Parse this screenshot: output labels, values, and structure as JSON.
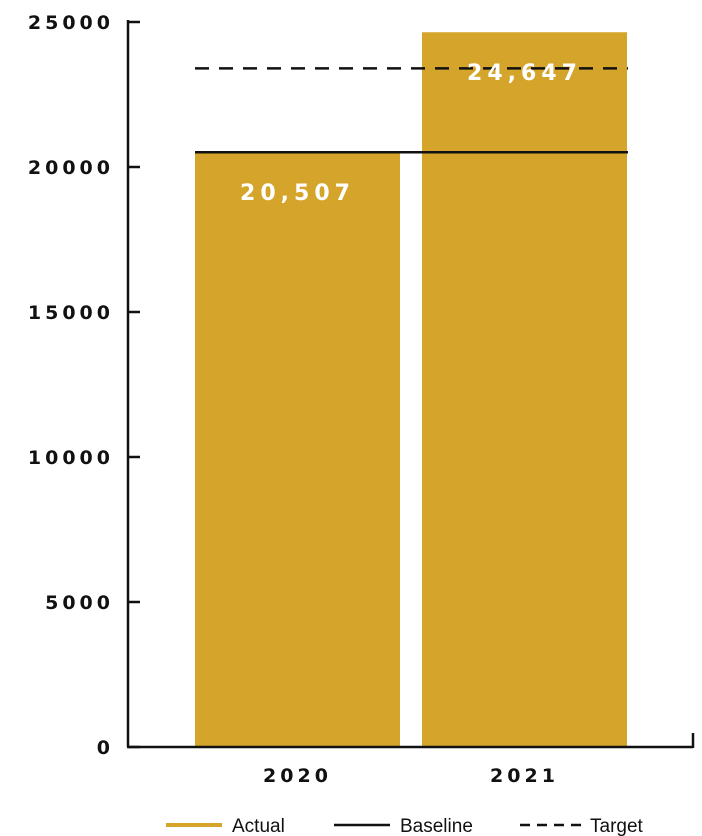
{
  "chart_data": {
    "type": "bar",
    "categories": [
      "2020",
      "2021"
    ],
    "values": [
      20507,
      24647
    ],
    "data_labels": [
      "20,507",
      "24,647"
    ],
    "ylim": [
      0,
      25000
    ],
    "yticks": [
      "0",
      "5000",
      "10000",
      "15000",
      "20000",
      "25000"
    ],
    "baseline": 20507,
    "target": 23400,
    "legend": [
      {
        "label": "Actual",
        "style": "bar",
        "color": "#D4A52A"
      },
      {
        "label": "Baseline",
        "style": "solid-line",
        "color": "#111111"
      },
      {
        "label": "Target",
        "style": "dashed-line",
        "color": "#111111"
      }
    ],
    "legend_position": "bottom",
    "grid": false,
    "title": "",
    "xlabel": "",
    "ylabel": ""
  },
  "colors": {
    "bar": "#D4A52A",
    "axis": "#111111",
    "label_on_bar": "#ffffff"
  }
}
